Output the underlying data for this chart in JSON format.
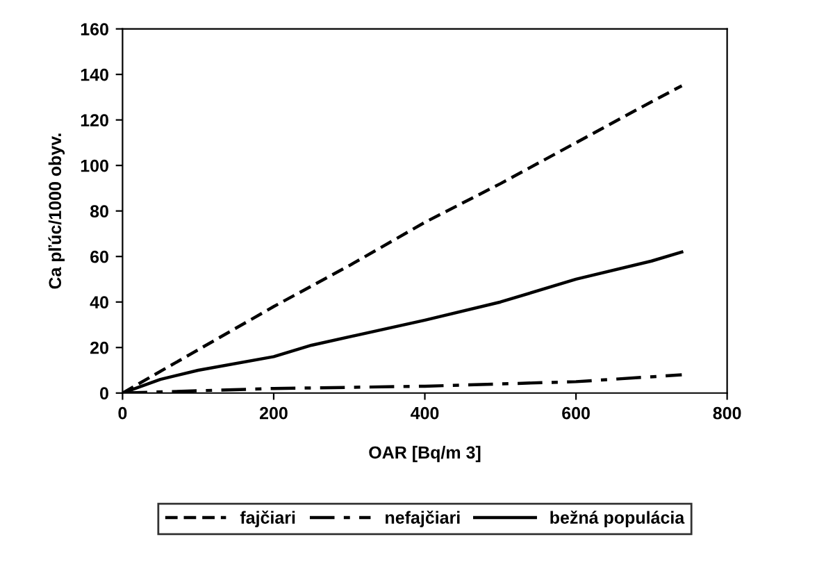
{
  "chart_data": {
    "type": "line",
    "xlabel": "OAR [Bq/m 3]",
    "ylabel": "Ca pľúc/1000 obyv.",
    "xlim": [
      0,
      800
    ],
    "xticks": [
      0,
      200,
      400,
      600,
      800
    ],
    "ylim": [
      0,
      160
    ],
    "yticks": [
      0,
      20,
      40,
      60,
      80,
      100,
      120,
      140,
      160
    ],
    "grid": false,
    "legend": "bottom",
    "marker": "none",
    "series": [
      {
        "name": "fajčiari",
        "color": "#000000",
        "line_style": "dashed",
        "x": [
          0,
          100,
          200,
          300,
          400,
          500,
          600,
          700,
          740
        ],
        "values": [
          0,
          19,
          38,
          56,
          75,
          92,
          110,
          128,
          135
        ]
      },
      {
        "name": "nefajčiari",
        "color": "#000000",
        "line_style": "dashdot",
        "x": [
          0,
          200,
          400,
          600,
          740
        ],
        "values": [
          0,
          2,
          3,
          5,
          8
        ]
      },
      {
        "name": "bežná populácia",
        "color": "#000000",
        "line_style": "solid",
        "x": [
          0,
          50,
          100,
          200,
          250,
          400,
          500,
          600,
          700,
          740
        ],
        "values": [
          0,
          6,
          10,
          16,
          21,
          32,
          40,
          50,
          58,
          62
        ]
      }
    ]
  }
}
